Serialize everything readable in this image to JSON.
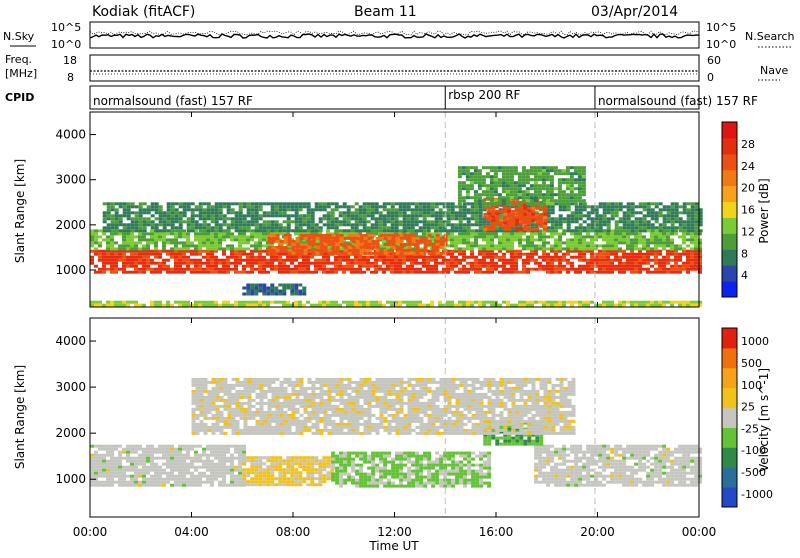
{
  "header": {
    "station": "Kodiak (fitACF)",
    "beam": "Beam 11",
    "date": "03/Apr/2014"
  },
  "sky_panel": {
    "left_label": "N.Sky",
    "right_label": "N.Search",
    "left_ticks": [
      "10^5",
      "10^0"
    ],
    "right_ticks": [
      "10^5",
      "10^0"
    ]
  },
  "freq_panel": {
    "left_label_line1": "Freq.",
    "left_label_line2": "[MHz]",
    "right_label": "Nave",
    "left_ticks": [
      "18",
      "8"
    ],
    "right_ticks": [
      "60",
      "0"
    ]
  },
  "cpid_panel": {
    "label": "CPID",
    "segments": [
      {
        "text": "normalsound (fast) 157 RF",
        "start_hour": 0,
        "end_hour": 14.0
      },
      {
        "text": "rbsp 200 RF",
        "start_hour": 14.0,
        "end_hour": 19.9
      },
      {
        "text": "normalsound (fast) 157 RF",
        "start_hour": 19.9,
        "end_hour": 24
      }
    ]
  },
  "time_axis": {
    "label": "Time UT",
    "ticks": [
      "00:00",
      "04:00",
      "08:00",
      "12:00",
      "16:00",
      "20:00",
      "00:00"
    ]
  },
  "chart_data": [
    {
      "type": "heatmap",
      "title": "",
      "ylabel": "Slant Range [km]",
      "xlabel": "Time UT",
      "xlim": [
        0,
        24
      ],
      "ylim": [
        180,
        4500
      ],
      "yticks": [
        "1000",
        "2000",
        "3000",
        "4000"
      ],
      "colorbar": {
        "label": "Power [dB]",
        "ticks": [
          "4",
          "8",
          "12",
          "16",
          "20",
          "24",
          "28"
        ],
        "range": [
          0,
          32
        ],
        "colors": [
          "#0b23f0",
          "#2a46a8",
          "#2f7a58",
          "#4c9e3a",
          "#7dcb34",
          "#f2d21b",
          "#f7a21a",
          "#f07b14",
          "#ec5013",
          "#e52e10",
          "#e01410"
        ]
      },
      "regions": [
        {
          "name": "main-band-1000-1400km",
          "t_start": 0.0,
          "t_end": 24.0,
          "r_bottom": 950,
          "r_top": 1450,
          "level": 27
        },
        {
          "name": "upper-band-1500-1900km",
          "t_start": 0.0,
          "t_end": 24.0,
          "r_bottom": 1450,
          "r_top": 1900,
          "level": 12
        },
        {
          "name": "far-range-2000-2500km",
          "t_start": 0.5,
          "t_end": 24.0,
          "r_bottom": 1900,
          "r_top": 2500,
          "level": 8
        },
        {
          "name": "enhanced-1500-1800km",
          "t_start": 7.0,
          "t_end": 14.0,
          "r_bottom": 1400,
          "r_top": 1800,
          "level": 24
        },
        {
          "name": "rbsp-enhancement-2000-2600km",
          "t_start": 15.5,
          "t_end": 18.0,
          "r_bottom": 1900,
          "r_top": 2600,
          "level": 25
        },
        {
          "name": "late-far-echoes-2500-3300km",
          "t_start": 14.5,
          "t_end": 19.5,
          "r_bottom": 2500,
          "r_top": 3300,
          "level": 10
        },
        {
          "name": "near-range-500-700km",
          "t_start": 6.0,
          "t_end": 8.5,
          "r_bottom": 450,
          "r_top": 700,
          "level": 6
        },
        {
          "name": "ground-clutter-200-300km",
          "t_start": 0.0,
          "t_end": 24.0,
          "r_bottom": 200,
          "r_top": 320,
          "level": 14
        }
      ]
    },
    {
      "type": "heatmap",
      "title": "",
      "ylabel": "Slant Range [km]",
      "xlabel": "Time UT",
      "xlim": [
        0,
        24
      ],
      "ylim": [
        180,
        4500
      ],
      "yticks": [
        "1000",
        "2000",
        "3000",
        "4000"
      ],
      "colorbar": {
        "label": "Velocity [m s^-1]",
        "ticks": [
          "1000",
          "500",
          "100",
          "25",
          "-25",
          "-100",
          "-500",
          "-1000"
        ],
        "range": [
          -1000,
          1000
        ],
        "colors": [
          "#2149c8",
          "#2a6e9c",
          "#2f8a4a",
          "#63c236",
          "#c6c6c0",
          "#f2c21b",
          "#f7a21a",
          "#f0700e",
          "#e3200e"
        ]
      },
      "regions": [
        {
          "name": "ground-scatter-dawn",
          "t_start": 0.0,
          "t_end": 6.0,
          "r_bottom": 850,
          "r_top": 1750,
          "velocity": 0
        },
        {
          "name": "ground-scatter-dusk",
          "t_start": 17.5,
          "t_end": 24.0,
          "r_bottom": 850,
          "r_top": 1750,
          "velocity": 0
        },
        {
          "name": "positive-velocity-cluster",
          "t_start": 6.0,
          "t_end": 9.5,
          "r_bottom": 850,
          "r_top": 1500,
          "velocity": 150
        },
        {
          "name": "negative-velocity-cluster",
          "t_start": 9.5,
          "t_end": 15.8,
          "r_bottom": 850,
          "r_top": 1600,
          "velocity": -150
        },
        {
          "name": "strong-negative-upper",
          "t_start": 15.5,
          "t_end": 17.8,
          "r_bottom": 1750,
          "r_top": 2250,
          "velocity": -300
        },
        {
          "name": "upper-mixed-echoes",
          "t_start": 4.0,
          "t_end": 19.0,
          "r_bottom": 2000,
          "r_top": 3200,
          "velocity": 30
        }
      ]
    }
  ]
}
